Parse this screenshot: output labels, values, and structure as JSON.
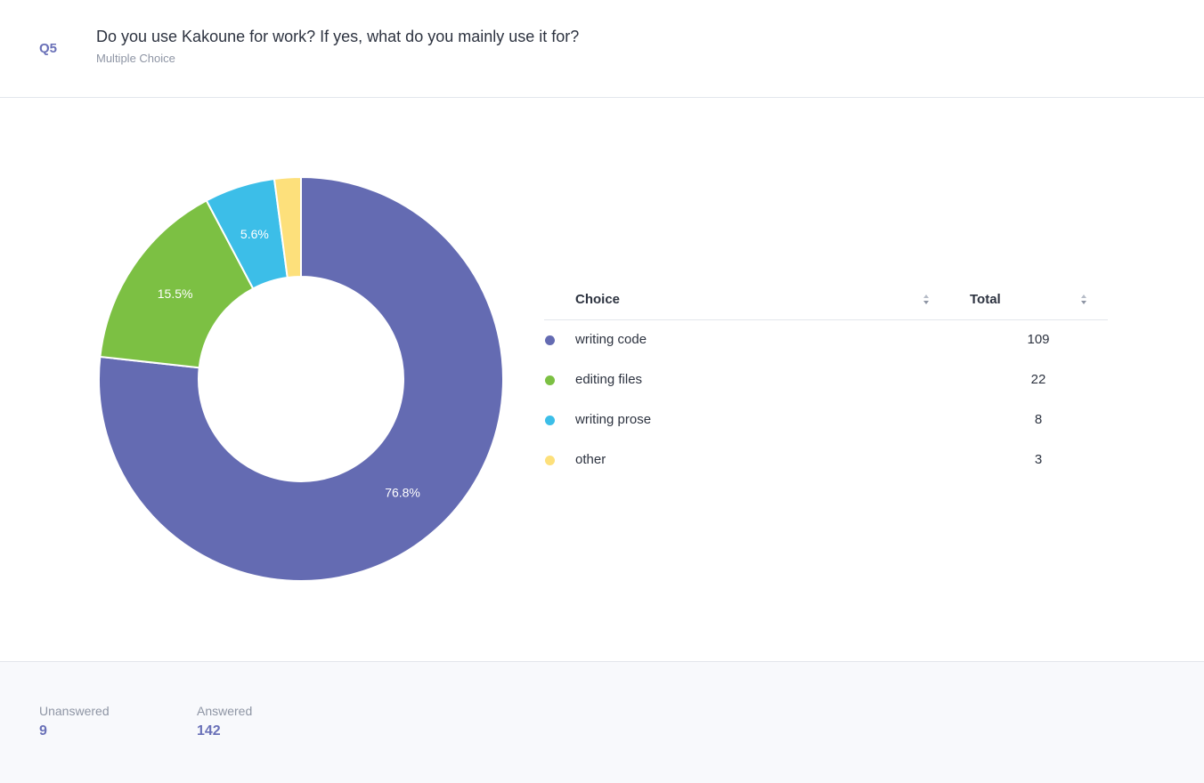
{
  "question": {
    "number": "Q5",
    "title": "Do you use Kakoune for work? If yes, what do you mainly use it for?",
    "type": "Multiple Choice"
  },
  "table": {
    "choice_header": "Choice",
    "total_header": "Total",
    "rows": [
      {
        "label": "writing code",
        "total": "109",
        "color": "#646bb2"
      },
      {
        "label": "editing files",
        "total": "22",
        "color": "#7cc043"
      },
      {
        "label": "writing prose",
        "total": "8",
        "color": "#3cbee8"
      },
      {
        "label": "other",
        "total": "3",
        "color": "#fde07b"
      }
    ]
  },
  "chart_data": {
    "type": "pie",
    "donut": true,
    "categories": [
      "writing code",
      "editing files",
      "writing prose",
      "other"
    ],
    "values": [
      109,
      22,
      8,
      3
    ],
    "labels": [
      "76.8%",
      "15.5%",
      "5.6%",
      ""
    ],
    "colors": [
      "#646bb2",
      "#7cc043",
      "#3cbee8",
      "#fde07b"
    ]
  },
  "footer": {
    "unanswered_label": "Unanswered",
    "unanswered_value": "9",
    "answered_label": "Answered",
    "answered_value": "142"
  }
}
